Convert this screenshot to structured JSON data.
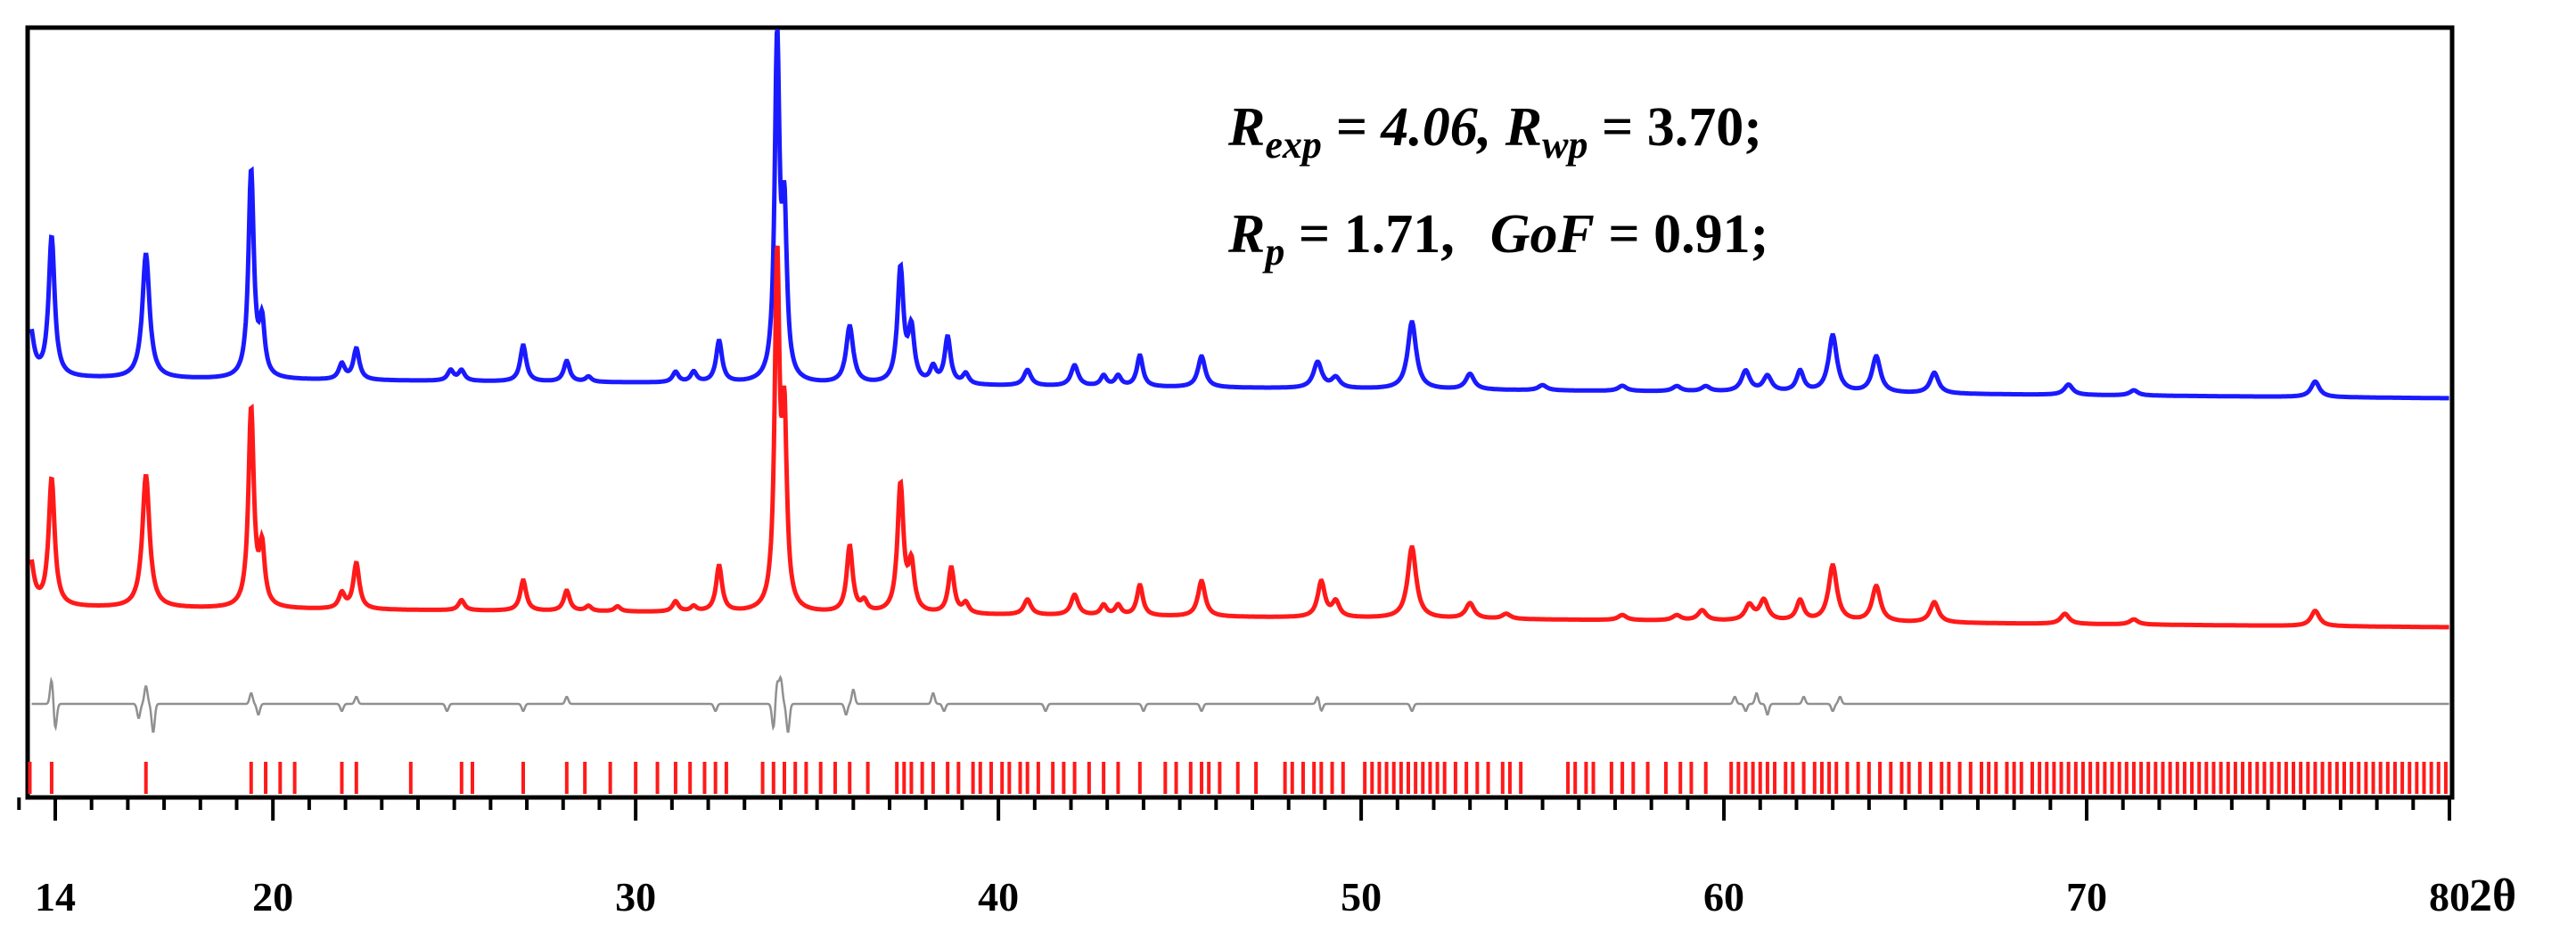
{
  "chart_data": {
    "type": "line",
    "title": "",
    "xlabel": "2θ",
    "ylabel": "",
    "xlim": [
      13,
      80
    ],
    "x_ticks": [
      14,
      20,
      30,
      40,
      50,
      60,
      70,
      80
    ],
    "x_tick_labels": [
      "14",
      "20",
      "30",
      "40",
      "50",
      "60",
      "70",
      "80"
    ],
    "x_minor_tick_step": 1,
    "legend": "none",
    "annotations": {
      "line1": {
        "r1_symbol": "R",
        "r1_sub": "exp",
        "r1_value": " = 4.06, ",
        "r2_symbol": "R",
        "r2_sub": "wp",
        "r2_value": " = 3.70;"
      },
      "line2": {
        "r3_symbol": "R",
        "r3_sub": "p",
        "r3_value": " = 1.71,",
        "gof_label": "GoF",
        "gof_value": " = 0.91;"
      }
    },
    "series": [
      {
        "name": "observed",
        "color": "#1a1aff",
        "baseline": 0.0,
        "background": {
          "start": 0.04,
          "end": 0.0
        },
        "peaks": [
          [
            13.3,
            0.1,
            0.12
          ],
          [
            13.9,
            0.27,
            0.1
          ],
          [
            16.5,
            0.24,
            0.12
          ],
          [
            19.4,
            0.4,
            0.09
          ],
          [
            19.7,
            0.1,
            0.09
          ],
          [
            21.9,
            0.03,
            0.1
          ],
          [
            22.3,
            0.06,
            0.1
          ],
          [
            24.9,
            0.02,
            0.1
          ],
          [
            25.2,
            0.02,
            0.1
          ],
          [
            26.9,
            0.07,
            0.1
          ],
          [
            28.1,
            0.04,
            0.1
          ],
          [
            28.7,
            0.01,
            0.1
          ],
          [
            31.1,
            0.02,
            0.1
          ],
          [
            31.6,
            0.02,
            0.1
          ],
          [
            32.3,
            0.08,
            0.1
          ],
          [
            33.9,
            0.65,
            0.08
          ],
          [
            34.1,
            0.3,
            0.08
          ],
          [
            35.9,
            0.11,
            0.12
          ],
          [
            37.3,
            0.22,
            0.1
          ],
          [
            37.6,
            0.1,
            0.1
          ],
          [
            38.2,
            0.03,
            0.1
          ],
          [
            38.6,
            0.09,
            0.1
          ],
          [
            39.1,
            0.02,
            0.1
          ],
          [
            40.8,
            0.03,
            0.12
          ],
          [
            42.1,
            0.04,
            0.12
          ],
          [
            42.9,
            0.02,
            0.1
          ],
          [
            43.3,
            0.02,
            0.1
          ],
          [
            43.9,
            0.06,
            0.1
          ],
          [
            45.6,
            0.06,
            0.12
          ],
          [
            48.8,
            0.05,
            0.14
          ],
          [
            49.3,
            0.02,
            0.14
          ],
          [
            51.4,
            0.13,
            0.14
          ],
          [
            53.0,
            0.03,
            0.14
          ],
          [
            55.0,
            0.01,
            0.14
          ],
          [
            57.2,
            0.01,
            0.14
          ],
          [
            58.7,
            0.01,
            0.14
          ],
          [
            59.5,
            0.01,
            0.14
          ],
          [
            60.6,
            0.04,
            0.14
          ],
          [
            61.2,
            0.03,
            0.14
          ],
          [
            62.1,
            0.04,
            0.12
          ],
          [
            63.0,
            0.11,
            0.14
          ],
          [
            64.2,
            0.07,
            0.14
          ],
          [
            65.8,
            0.04,
            0.14
          ],
          [
            69.5,
            0.02,
            0.14
          ],
          [
            71.3,
            0.01,
            0.14
          ],
          [
            76.3,
            0.03,
            0.14
          ]
        ]
      },
      {
        "name": "calculated",
        "color": "#ff1a1a",
        "baseline": 0.0,
        "background": {
          "start": 0.04,
          "end": 0.0
        },
        "peaks": [
          [
            13.3,
            0.1,
            0.12
          ],
          [
            13.9,
            0.25,
            0.1
          ],
          [
            16.5,
            0.26,
            0.12
          ],
          [
            19.4,
            0.39,
            0.09
          ],
          [
            19.7,
            0.11,
            0.09
          ],
          [
            21.9,
            0.03,
            0.1
          ],
          [
            22.3,
            0.09,
            0.1
          ],
          [
            25.2,
            0.02,
            0.1
          ],
          [
            26.9,
            0.06,
            0.1
          ],
          [
            28.1,
            0.04,
            0.1
          ],
          [
            28.7,
            0.01,
            0.1
          ],
          [
            29.5,
            0.01,
            0.1
          ],
          [
            31.1,
            0.02,
            0.1
          ],
          [
            31.6,
            0.01,
            0.1
          ],
          [
            32.3,
            0.09,
            0.1
          ],
          [
            33.9,
            0.68,
            0.08
          ],
          [
            34.1,
            0.35,
            0.08
          ],
          [
            35.9,
            0.13,
            0.1
          ],
          [
            36.3,
            0.02,
            0.1
          ],
          [
            37.3,
            0.25,
            0.1
          ],
          [
            37.6,
            0.09,
            0.1
          ],
          [
            38.7,
            0.09,
            0.1
          ],
          [
            39.1,
            0.02,
            0.1
          ],
          [
            40.8,
            0.03,
            0.12
          ],
          [
            42.1,
            0.04,
            0.12
          ],
          [
            42.9,
            0.02,
            0.1
          ],
          [
            43.3,
            0.02,
            0.1
          ],
          [
            43.9,
            0.06,
            0.1
          ],
          [
            45.6,
            0.07,
            0.12
          ],
          [
            48.9,
            0.07,
            0.12
          ],
          [
            49.3,
            0.03,
            0.12
          ],
          [
            51.4,
            0.14,
            0.14
          ],
          [
            53.0,
            0.03,
            0.14
          ],
          [
            54.0,
            0.01,
            0.14
          ],
          [
            57.2,
            0.01,
            0.14
          ],
          [
            58.7,
            0.01,
            0.14
          ],
          [
            59.4,
            0.02,
            0.14
          ],
          [
            60.7,
            0.03,
            0.14
          ],
          [
            61.1,
            0.04,
            0.14
          ],
          [
            62.1,
            0.04,
            0.12
          ],
          [
            63.0,
            0.11,
            0.14
          ],
          [
            64.2,
            0.07,
            0.14
          ],
          [
            65.8,
            0.04,
            0.14
          ],
          [
            69.4,
            0.02,
            0.14
          ],
          [
            71.3,
            0.01,
            0.14
          ],
          [
            76.3,
            0.03,
            0.14
          ]
        ]
      },
      {
        "name": "difference",
        "color": "#909090",
        "wiggles": [
          [
            13.9,
            0.07
          ],
          [
            14.0,
            -0.07
          ],
          [
            16.3,
            -0.04
          ],
          [
            16.5,
            0.05
          ],
          [
            16.7,
            -0.08
          ],
          [
            19.4,
            0.03
          ],
          [
            19.6,
            -0.03
          ],
          [
            21.9,
            -0.02
          ],
          [
            22.3,
            0.02
          ],
          [
            24.8,
            -0.02
          ],
          [
            26.9,
            -0.02
          ],
          [
            28.1,
            0.02
          ],
          [
            32.2,
            -0.02
          ],
          [
            33.8,
            -0.07
          ],
          [
            33.9,
            0.06
          ],
          [
            34.0,
            0.07
          ],
          [
            34.2,
            -0.08
          ],
          [
            35.8,
            -0.03
          ],
          [
            36.0,
            0.04
          ],
          [
            38.2,
            0.03
          ],
          [
            38.5,
            -0.02
          ],
          [
            41.3,
            -0.02
          ],
          [
            44.0,
            -0.02
          ],
          [
            45.6,
            -0.02
          ],
          [
            48.8,
            0.02
          ],
          [
            48.9,
            -0.02
          ],
          [
            51.4,
            -0.02
          ],
          [
            60.3,
            0.02
          ],
          [
            60.6,
            -0.02
          ],
          [
            60.9,
            0.03
          ],
          [
            61.2,
            -0.03
          ],
          [
            62.2,
            0.02
          ],
          [
            63.0,
            -0.02
          ],
          [
            63.2,
            0.02
          ]
        ]
      }
    ],
    "reflection_markers": {
      "color": "#ff1a1a",
      "positions": [
        13.3,
        13.9,
        16.5,
        19.4,
        19.8,
        20.2,
        20.6,
        21.9,
        22.3,
        23.8,
        25.2,
        25.5,
        26.9,
        28.1,
        28.6,
        29.3,
        30.0,
        30.6,
        31.1,
        31.5,
        31.9,
        32.2,
        32.5,
        33.5,
        33.8,
        34.1,
        34.4,
        34.7,
        35.1,
        35.5,
        35.9,
        36.4,
        37.2,
        37.4,
        37.6,
        37.9,
        38.2,
        38.6,
        38.9,
        39.3,
        39.5,
        39.8,
        40.1,
        40.3,
        40.6,
        40.8,
        41.1,
        41.5,
        41.8,
        42.1,
        42.5,
        42.9,
        43.3,
        43.9,
        44.6,
        44.9,
        45.3,
        45.6,
        45.8,
        46.1,
        46.6,
        47.1,
        47.9,
        48.1,
        48.4,
        48.7,
        48.9,
        49.2,
        49.5,
        50.1,
        50.3,
        50.5,
        50.7,
        50.9,
        51.1,
        51.3,
        51.5,
        51.7,
        51.9,
        52.1,
        52.3,
        52.6,
        52.9,
        53.2,
        53.5,
        53.9,
        54.1,
        54.4,
        55.7,
        55.9,
        56.2,
        56.4,
        56.9,
        57.2,
        57.5,
        57.9,
        58.4,
        58.8,
        59.1,
        59.5,
        60.2,
        60.4,
        60.6,
        60.8,
        61.0,
        61.2,
        61.4,
        61.7,
        61.9,
        62.2,
        62.5,
        62.7,
        62.9,
        63.1,
        63.4,
        63.7,
        64.0,
        64.3,
        64.6,
        64.9,
        65.1,
        65.4,
        65.7,
        66.0,
        66.2,
        66.5,
        66.8,
        67.1,
        67.3,
        67.5,
        67.8,
        68.0,
        68.2,
        68.5,
        68.7,
        68.9,
        69.1,
        69.3,
        69.5,
        69.7,
        69.9,
        70.1,
        70.3,
        70.5,
        70.7,
        70.9,
        71.1,
        71.3,
        71.5,
        71.7,
        71.9,
        72.1,
        72.3,
        72.5,
        72.7,
        72.9,
        73.1,
        73.3,
        73.5,
        73.7,
        73.9,
        74.1,
        74.3,
        74.5,
        74.7,
        74.9,
        75.1,
        75.3,
        75.5,
        75.7,
        75.9,
        76.1,
        76.3,
        76.5,
        76.7,
        76.9,
        77.1,
        77.3,
        77.5,
        77.7,
        77.9,
        78.1,
        78.3,
        78.5,
        78.7,
        78.9,
        79.1,
        79.3,
        79.5,
        79.7,
        79.9
      ]
    }
  }
}
